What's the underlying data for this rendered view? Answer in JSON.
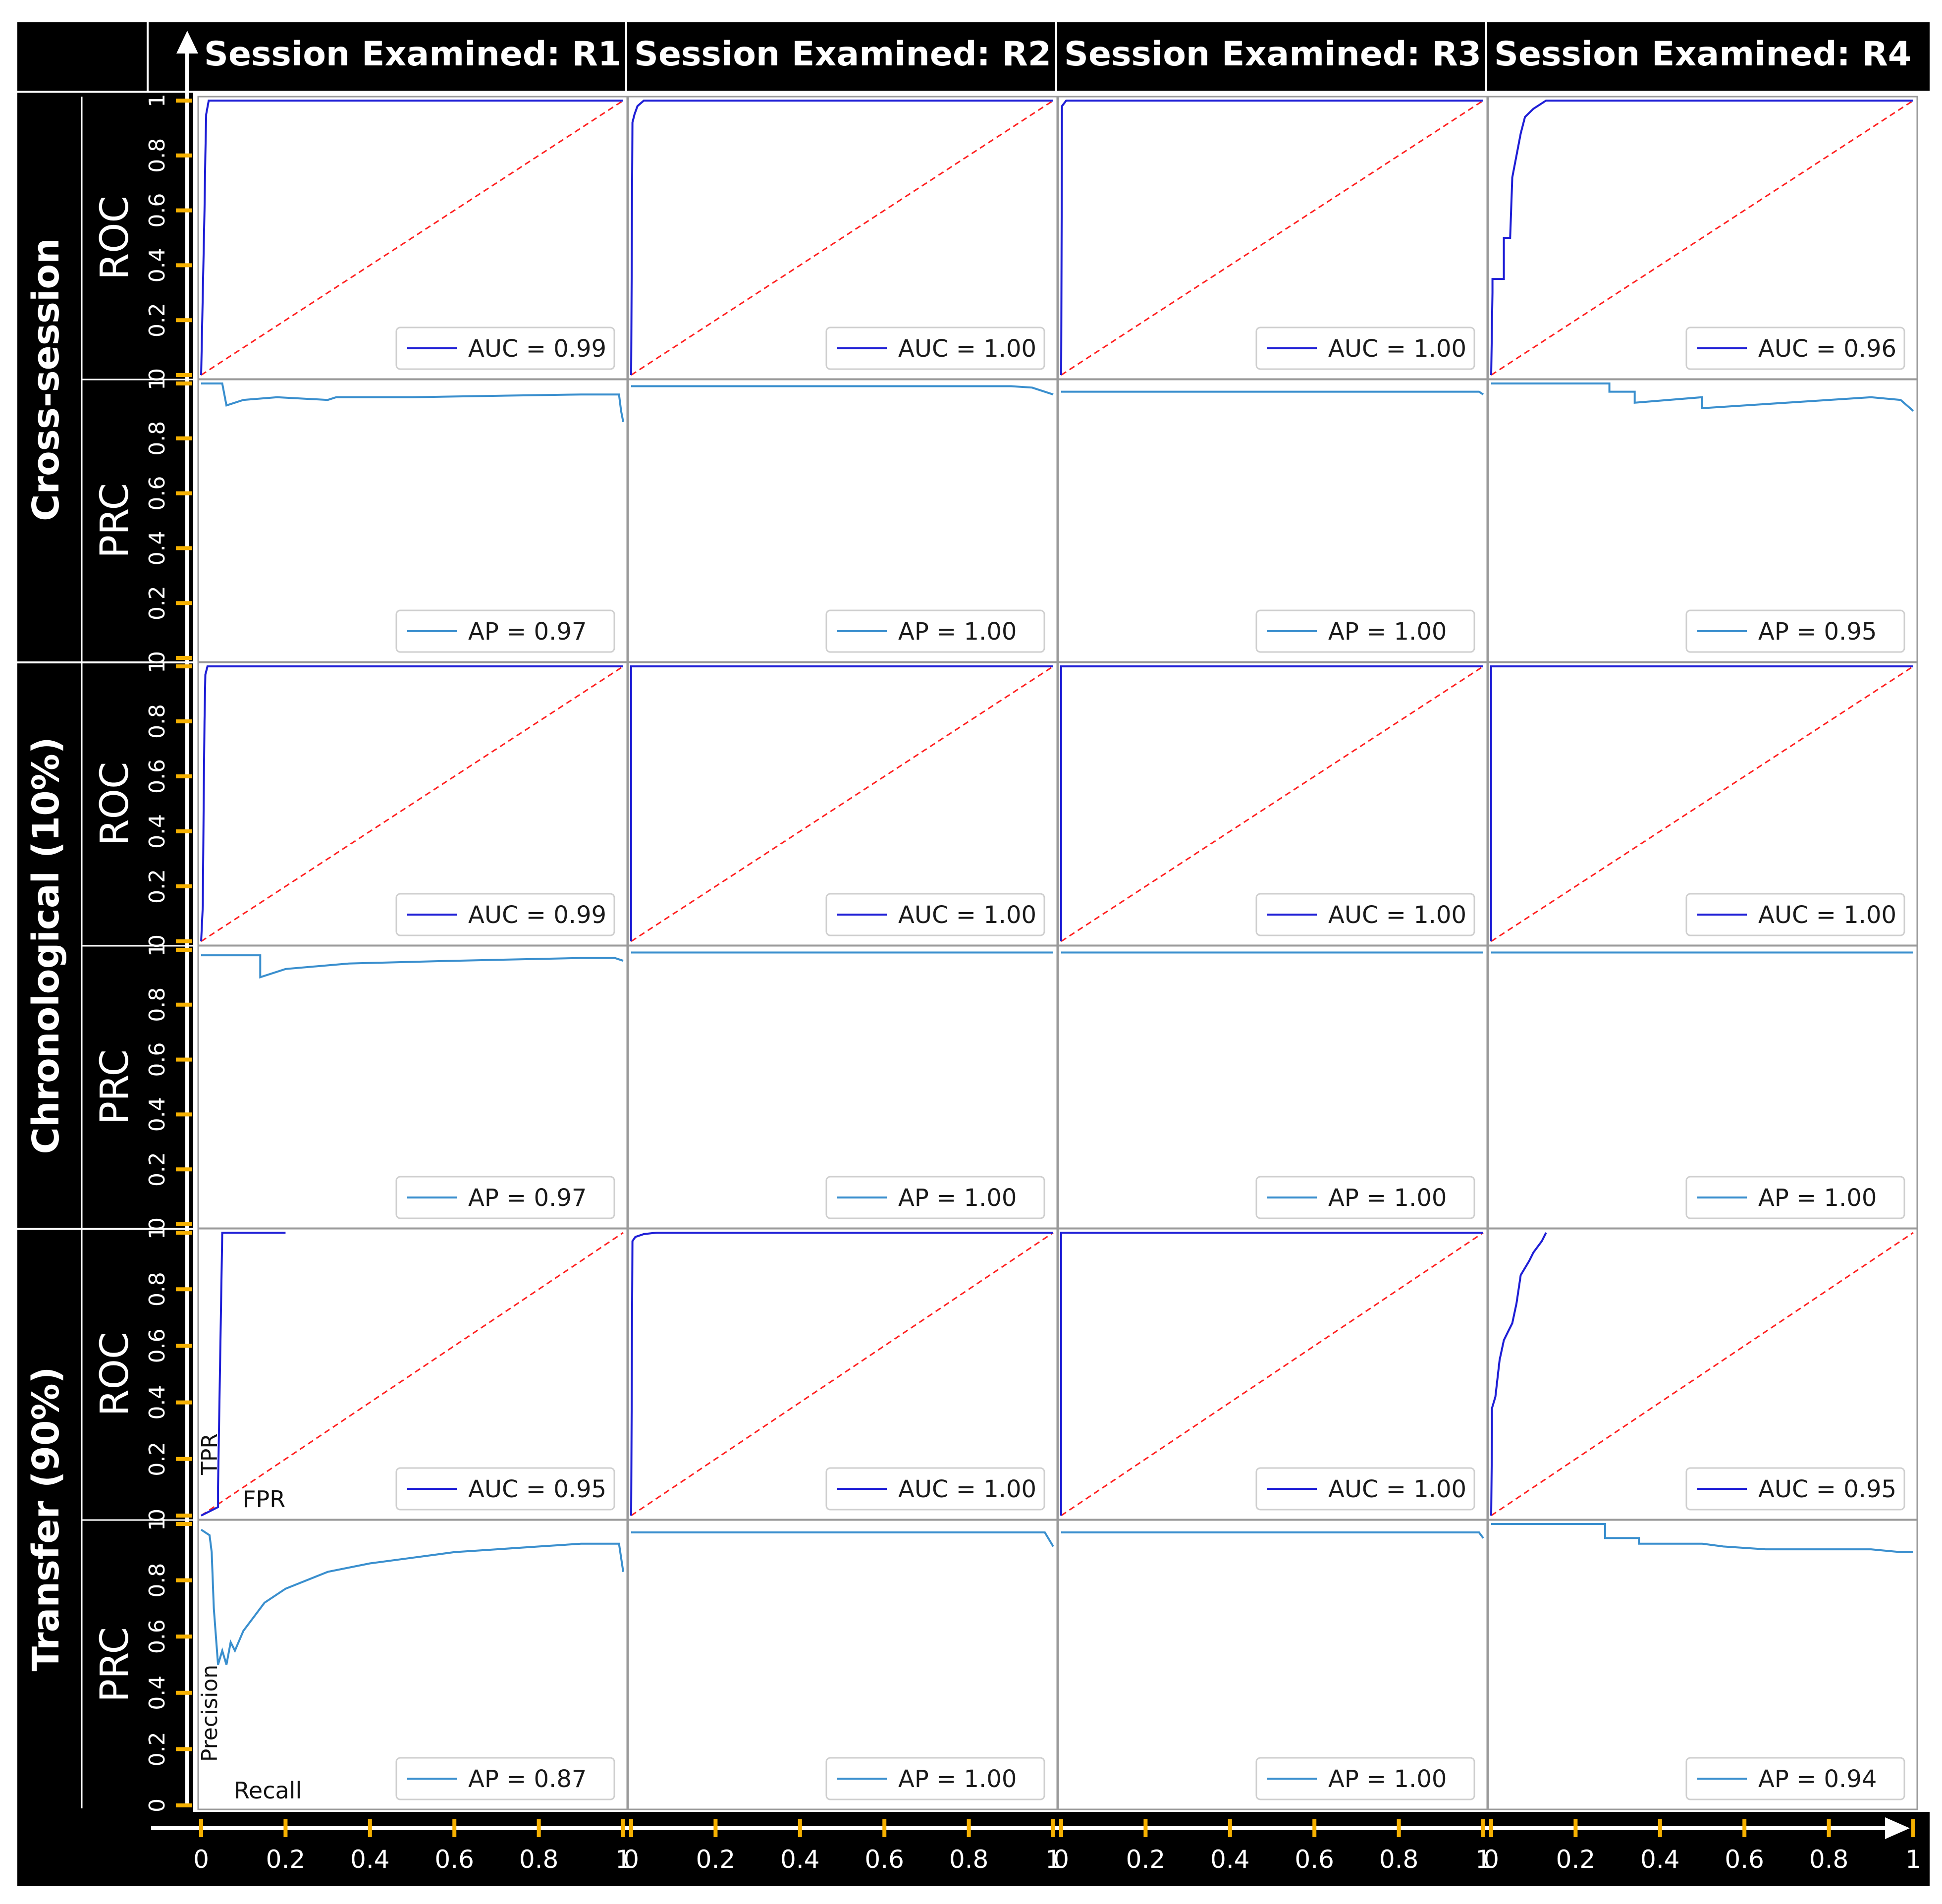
{
  "colors": {
    "frame": "#000000",
    "roc_line": "#1f1fd6",
    "prc_line": "#3a8fce",
    "diagonal": "#ff2020",
    "tick_mark": "#f5b000",
    "text_on_dark": "#ffffff"
  },
  "icons": {
    "x_axis_end": "arrow-right-icon",
    "y_axis_end": "arrow-up-icon"
  },
  "headers": {
    "columns": [
      "Session Examined: R1",
      "Session Examined: R2",
      "Session Examined: R3",
      "Session Examined: R4"
    ],
    "row_groups": [
      "Cross-session",
      "Chronological (10%)",
      "Transfer (90%)"
    ],
    "row_types": [
      "ROC",
      "PRC"
    ]
  },
  "axis_ticks": {
    "y": [
      "0",
      "0.2",
      "0.4",
      "0.6",
      "0.8",
      "1"
    ],
    "x": [
      "0",
      "0.2",
      "0.4",
      "0.6",
      "0.8",
      "1"
    ]
  },
  "axis_notes": {
    "tpr": "TPR",
    "fpr": "FPR",
    "precision": "Precision",
    "recall": "Recall"
  },
  "chart_data": [
    {
      "type": "line",
      "group": "Cross-session",
      "session": "R1",
      "curve": "ROC",
      "legend": "AUC = 0.99",
      "xlim": [
        0,
        1
      ],
      "ylim": [
        0,
        1
      ],
      "x": [
        0,
        0.004,
        0.006,
        0.008,
        0.01,
        0.012,
        0.018,
        1
      ],
      "y": [
        0,
        0.3,
        0.45,
        0.6,
        0.8,
        0.95,
        1,
        1
      ]
    },
    {
      "type": "line",
      "group": "Cross-session",
      "session": "R2",
      "curve": "ROC",
      "legend": "AUC = 1.00",
      "xlim": [
        0,
        1
      ],
      "ylim": [
        0,
        1
      ],
      "x": [
        0,
        0.003,
        0.008,
        0.015,
        0.03,
        1
      ],
      "y": [
        0,
        0.92,
        0.95,
        0.98,
        1,
        1
      ]
    },
    {
      "type": "line",
      "group": "Cross-session",
      "session": "R3",
      "curve": "ROC",
      "legend": "AUC = 1.00",
      "xlim": [
        0,
        1
      ],
      "ylim": [
        0,
        1
      ],
      "x": [
        0,
        0.002,
        0.012,
        1
      ],
      "y": [
        0,
        0.98,
        1,
        1
      ]
    },
    {
      "type": "line",
      "group": "Cross-session",
      "session": "R4",
      "curve": "ROC",
      "legend": "AUC = 0.96",
      "xlim": [
        0,
        1
      ],
      "ylim": [
        0,
        1
      ],
      "x": [
        0,
        0.003,
        0.003,
        0.03,
        0.03,
        0.045,
        0.05,
        0.06,
        0.07,
        0.08,
        0.1,
        0.13,
        1
      ],
      "y": [
        0,
        0.3,
        0.35,
        0.35,
        0.5,
        0.5,
        0.72,
        0.8,
        0.88,
        0.94,
        0.97,
        1,
        1
      ]
    },
    {
      "type": "line",
      "group": "Cross-session",
      "session": "R1",
      "curve": "PRC",
      "legend": "AP = 0.97",
      "xlim": [
        0,
        1
      ],
      "ylim": [
        0,
        1
      ],
      "x": [
        0,
        0.05,
        0.06,
        0.1,
        0.18,
        0.3,
        0.32,
        0.5,
        0.7,
        0.9,
        0.99,
        0.995,
        1
      ],
      "y": [
        1,
        1,
        0.92,
        0.94,
        0.95,
        0.94,
        0.95,
        0.95,
        0.955,
        0.96,
        0.96,
        0.9,
        0.86
      ]
    },
    {
      "type": "line",
      "group": "Cross-session",
      "session": "R2",
      "curve": "PRC",
      "legend": "AP = 1.00",
      "xlim": [
        0,
        1
      ],
      "ylim": [
        0,
        1
      ],
      "x": [
        0,
        0.9,
        0.95,
        1
      ],
      "y": [
        0.99,
        0.99,
        0.985,
        0.96
      ]
    },
    {
      "type": "line",
      "group": "Cross-session",
      "session": "R3",
      "curve": "PRC",
      "legend": "AP = 1.00",
      "xlim": [
        0,
        1
      ],
      "ylim": [
        0,
        1
      ],
      "x": [
        0,
        0.99,
        1
      ],
      "y": [
        0.97,
        0.97,
        0.96
      ]
    },
    {
      "type": "line",
      "group": "Cross-session",
      "session": "R4",
      "curve": "PRC",
      "legend": "AP = 0.95",
      "xlim": [
        0,
        1
      ],
      "ylim": [
        0,
        1
      ],
      "x": [
        0,
        0.28,
        0.28,
        0.34,
        0.34,
        0.5,
        0.5,
        0.8,
        0.9,
        0.97,
        1
      ],
      "y": [
        1,
        1,
        0.97,
        0.97,
        0.93,
        0.95,
        0.91,
        0.94,
        0.95,
        0.94,
        0.9
      ]
    },
    {
      "type": "line",
      "group": "Chronological (10%)",
      "session": "R1",
      "curve": "ROC",
      "legend": "AUC = 0.99",
      "xlim": [
        0,
        1
      ],
      "ylim": [
        0,
        1
      ],
      "x": [
        0,
        0.004,
        0.006,
        0.008,
        0.01,
        0.015,
        1
      ],
      "y": [
        0,
        0.13,
        0.5,
        0.8,
        0.97,
        1,
        1
      ]
    },
    {
      "type": "line",
      "group": "Chronological (10%)",
      "session": "R2",
      "curve": "ROC",
      "legend": "AUC = 1.00",
      "xlim": [
        0,
        1
      ],
      "ylim": [
        0,
        1
      ],
      "x": [
        0,
        0,
        1
      ],
      "y": [
        0,
        1,
        1
      ]
    },
    {
      "type": "line",
      "group": "Chronological (10%)",
      "session": "R3",
      "curve": "ROC",
      "legend": "AUC = 1.00",
      "xlim": [
        0,
        1
      ],
      "ylim": [
        0,
        1
      ],
      "x": [
        0,
        0,
        1
      ],
      "y": [
        0,
        1,
        1
      ]
    },
    {
      "type": "line",
      "group": "Chronological (10%)",
      "session": "R4",
      "curve": "ROC",
      "legend": "AUC = 1.00",
      "xlim": [
        0,
        1
      ],
      "ylim": [
        0,
        1
      ],
      "x": [
        0,
        0,
        1
      ],
      "y": [
        0,
        1,
        1
      ]
    },
    {
      "type": "line",
      "group": "Chronological (10%)",
      "session": "R1",
      "curve": "PRC",
      "legend": "AP = 0.97",
      "xlim": [
        0,
        1
      ],
      "ylim": [
        0,
        1
      ],
      "x": [
        0,
        0.14,
        0.14,
        0.2,
        0.35,
        0.6,
        0.9,
        0.98,
        1
      ],
      "y": [
        0.98,
        0.98,
        0.9,
        0.93,
        0.95,
        0.96,
        0.97,
        0.97,
        0.96
      ]
    },
    {
      "type": "line",
      "group": "Chronological (10%)",
      "session": "R2",
      "curve": "PRC",
      "legend": "AP = 1.00",
      "xlim": [
        0,
        1
      ],
      "ylim": [
        0,
        1
      ],
      "x": [
        0,
        1
      ],
      "y": [
        0.99,
        0.99
      ]
    },
    {
      "type": "line",
      "group": "Chronological (10%)",
      "session": "R3",
      "curve": "PRC",
      "legend": "AP = 1.00",
      "xlim": [
        0,
        1
      ],
      "ylim": [
        0,
        1
      ],
      "x": [
        0,
        1
      ],
      "y": [
        0.99,
        0.99
      ]
    },
    {
      "type": "line",
      "group": "Chronological (10%)",
      "session": "R4",
      "curve": "PRC",
      "legend": "AP = 1.00",
      "xlim": [
        0,
        1
      ],
      "ylim": [
        0,
        1
      ],
      "x": [
        0,
        1
      ],
      "y": [
        0.99,
        0.99
      ]
    },
    {
      "type": "line",
      "group": "Transfer (90%)",
      "session": "R1",
      "curve": "ROC",
      "legend": "AUC = 0.95",
      "xlim": [
        0,
        1
      ],
      "ylim": [
        0,
        1
      ],
      "x": [
        0,
        0.04,
        0.04,
        0.05,
        0.2
      ],
      "y": [
        0,
        0.03,
        0.1,
        1,
        1
      ]
    },
    {
      "type": "line",
      "group": "Transfer (90%)",
      "session": "R2",
      "curve": "ROC",
      "legend": "AUC = 1.00",
      "xlim": [
        0,
        1
      ],
      "ylim": [
        0,
        1
      ],
      "x": [
        0,
        0.003,
        0.01,
        0.03,
        0.06,
        1
      ],
      "y": [
        0,
        0.97,
        0.985,
        0.995,
        1,
        1
      ]
    },
    {
      "type": "line",
      "group": "Transfer (90%)",
      "session": "R3",
      "curve": "ROC",
      "legend": "AUC = 1.00",
      "xlim": [
        0,
        1
      ],
      "ylim": [
        0,
        1
      ],
      "x": [
        0,
        0,
        1
      ],
      "y": [
        0,
        1,
        1
      ]
    },
    {
      "type": "line",
      "group": "Transfer (90%)",
      "session": "R4",
      "curve": "ROC",
      "legend": "AUC = 0.95",
      "xlim": [
        0,
        1
      ],
      "ylim": [
        0,
        1
      ],
      "x": [
        0,
        0.002,
        0.002,
        0.01,
        0.02,
        0.03,
        0.04,
        0.05,
        0.06,
        0.07,
        0.09,
        0.1,
        0.12,
        0.13
      ],
      "y": [
        0,
        0.3,
        0.38,
        0.42,
        0.55,
        0.62,
        0.65,
        0.68,
        0.75,
        0.85,
        0.9,
        0.93,
        0.97,
        1
      ]
    },
    {
      "type": "line",
      "group": "Transfer (90%)",
      "session": "R1",
      "curve": "PRC",
      "legend": "AP = 0.87",
      "xlim": [
        0,
        1
      ],
      "ylim": [
        0,
        1
      ],
      "x": [
        0,
        0.02,
        0.025,
        0.03,
        0.04,
        0.05,
        0.06,
        0.07,
        0.08,
        0.1,
        0.15,
        0.2,
        0.3,
        0.4,
        0.5,
        0.6,
        0.7,
        0.8,
        0.9,
        0.99,
        1
      ],
      "y": [
        0.98,
        0.96,
        0.9,
        0.7,
        0.5,
        0.55,
        0.5,
        0.58,
        0.55,
        0.62,
        0.72,
        0.77,
        0.83,
        0.86,
        0.88,
        0.9,
        0.91,
        0.92,
        0.93,
        0.93,
        0.83
      ]
    },
    {
      "type": "line",
      "group": "Transfer (90%)",
      "session": "R2",
      "curve": "PRC",
      "legend": "AP = 1.00",
      "xlim": [
        0,
        1
      ],
      "ylim": [
        0,
        1
      ],
      "x": [
        0,
        0.98,
        1
      ],
      "y": [
        0.97,
        0.97,
        0.92
      ]
    },
    {
      "type": "line",
      "group": "Transfer (90%)",
      "session": "R3",
      "curve": "PRC",
      "legend": "AP = 1.00",
      "xlim": [
        0,
        1
      ],
      "ylim": [
        0,
        1
      ],
      "x": [
        0,
        0.99,
        1
      ],
      "y": [
        0.97,
        0.97,
        0.95
      ]
    },
    {
      "type": "line",
      "group": "Transfer (90%)",
      "session": "R4",
      "curve": "PRC",
      "legend": "AP = 0.94",
      "xlim": [
        0,
        1
      ],
      "ylim": [
        0,
        1
      ],
      "x": [
        0,
        0.27,
        0.27,
        0.35,
        0.35,
        0.5,
        0.55,
        0.65,
        0.7,
        0.8,
        0.9,
        0.97,
        1
      ],
      "y": [
        1,
        1,
        0.95,
        0.95,
        0.93,
        0.93,
        0.92,
        0.91,
        0.91,
        0.91,
        0.91,
        0.9,
        0.9
      ]
    }
  ]
}
